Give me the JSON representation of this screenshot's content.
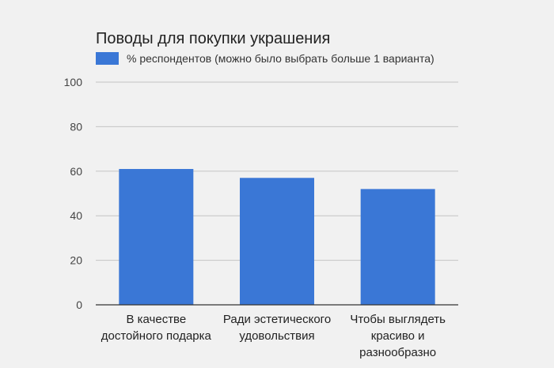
{
  "chart_data": {
    "type": "bar",
    "title": "Поводы для покупки украшения",
    "categories": [
      [
        "В качестве",
        "достойного подарка"
      ],
      [
        "Ради эстетического",
        "удовольствия"
      ],
      [
        "Чтобы выглядеть",
        "красиво и",
        "разнообразно"
      ]
    ],
    "series": [
      {
        "name": "% респондентов (можно было выбрать больше 1 варианта)",
        "values": [
          61,
          57,
          52
        ],
        "color": "#3a77d6"
      }
    ],
    "yticks": [
      0,
      20,
      40,
      60,
      80,
      100
    ],
    "ylim": [
      0,
      100
    ],
    "grid": true,
    "legend_position": "top-left"
  }
}
